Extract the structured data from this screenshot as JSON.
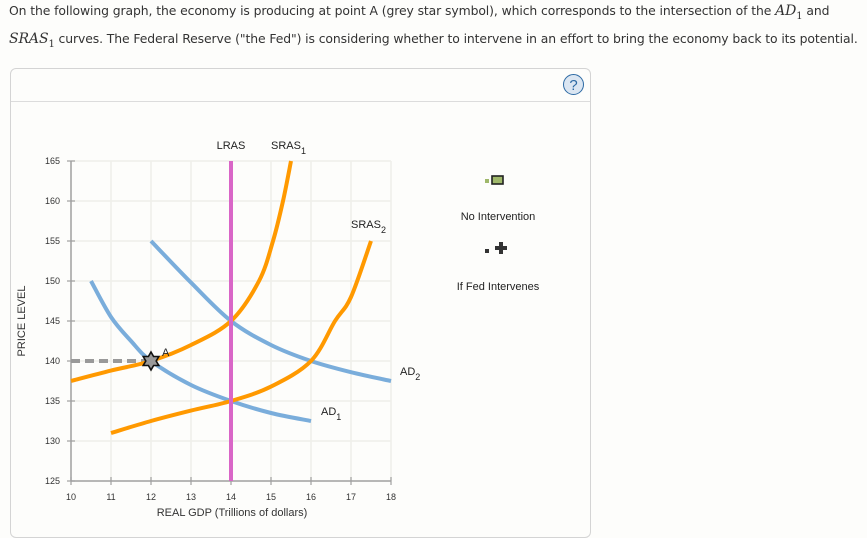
{
  "prompt": {
    "line1_pre": "On the following graph, the economy is producing at point A (grey star symbol), which corresponds to the intersection of the ",
    "line1_math": "AD",
    "line1_math_sub": "1",
    "line1_post": " and",
    "line2_math": "SRAS",
    "line2_math_sub": "1",
    "line2_post": " curves. The Federal Reserve (\"the Fed\") is considering whether to intervene in an effort to bring the economy back to its potential."
  },
  "panel": {
    "help_label": "?"
  },
  "legend": {
    "items": [
      {
        "label": "No Intervention",
        "icon": "green-rectangle-marker",
        "color": "#9fb86a"
      },
      {
        "label": "If Fed Intervenes",
        "icon": "black-plus-marker",
        "color": "#333333"
      }
    ]
  },
  "chart_data": {
    "type": "line",
    "title": "",
    "xlabel": "REAL GDP (Trillions of dollars)",
    "ylabel": "PRICE LEVEL",
    "xlim": [
      10,
      18
    ],
    "ylim": [
      125,
      165
    ],
    "xticks": [
      10,
      11,
      12,
      13,
      14,
      15,
      16,
      17,
      18
    ],
    "yticks": [
      125,
      130,
      135,
      140,
      145,
      150,
      155,
      160,
      165
    ],
    "grid": true,
    "series": [
      {
        "name": "LRAS",
        "color": "#d966c7",
        "points": [
          [
            14,
            125
          ],
          [
            14,
            165
          ]
        ]
      },
      {
        "name": "SRAS1",
        "color": "#ff9900",
        "points": [
          [
            10,
            137.5
          ],
          [
            11,
            138.8
          ],
          [
            12,
            140
          ],
          [
            13,
            142
          ],
          [
            14,
            145
          ],
          [
            14.7,
            150
          ],
          [
            15.05,
            155
          ],
          [
            15.3,
            160
          ],
          [
            15.5,
            165
          ]
        ]
      },
      {
        "name": "SRAS2",
        "color": "#ff9900",
        "points": [
          [
            11,
            131
          ],
          [
            12,
            132.5
          ],
          [
            13,
            133.8
          ],
          [
            14,
            135
          ],
          [
            15,
            136.8
          ],
          [
            16,
            140
          ],
          [
            16.6,
            145
          ],
          [
            17,
            148
          ],
          [
            17.5,
            155
          ]
        ]
      },
      {
        "name": "AD1",
        "color": "#7aaddb",
        "points": [
          [
            10.5,
            150
          ],
          [
            11,
            145.5
          ],
          [
            11.5,
            142.5
          ],
          [
            12,
            140
          ],
          [
            13,
            137
          ],
          [
            14,
            135
          ],
          [
            15,
            133.5
          ],
          [
            16,
            132.5
          ]
        ]
      },
      {
        "name": "AD2",
        "color": "#7aaddb",
        "points": [
          [
            12,
            155
          ],
          [
            13,
            149.8
          ],
          [
            14,
            145
          ],
          [
            15,
            142
          ],
          [
            16,
            140
          ],
          [
            17,
            138.6
          ],
          [
            18,
            137.5
          ]
        ]
      }
    ],
    "annotations": [
      {
        "label": "A",
        "x": 12,
        "y": 140,
        "marker": "grey-star"
      },
      {
        "label": "dashed guide",
        "from": [
          10,
          140
        ],
        "to": [
          12,
          140
        ]
      }
    ],
    "curve_labels": {
      "LRAS": "LRAS",
      "SRAS1": "SRAS",
      "SRAS1_sub": "1",
      "SRAS2": "SRAS",
      "SRAS2_sub": "2",
      "AD1": "AD",
      "AD1_sub": "1",
      "AD2": "AD",
      "AD2_sub": "2",
      "A": "A"
    },
    "legend_position": "right"
  }
}
